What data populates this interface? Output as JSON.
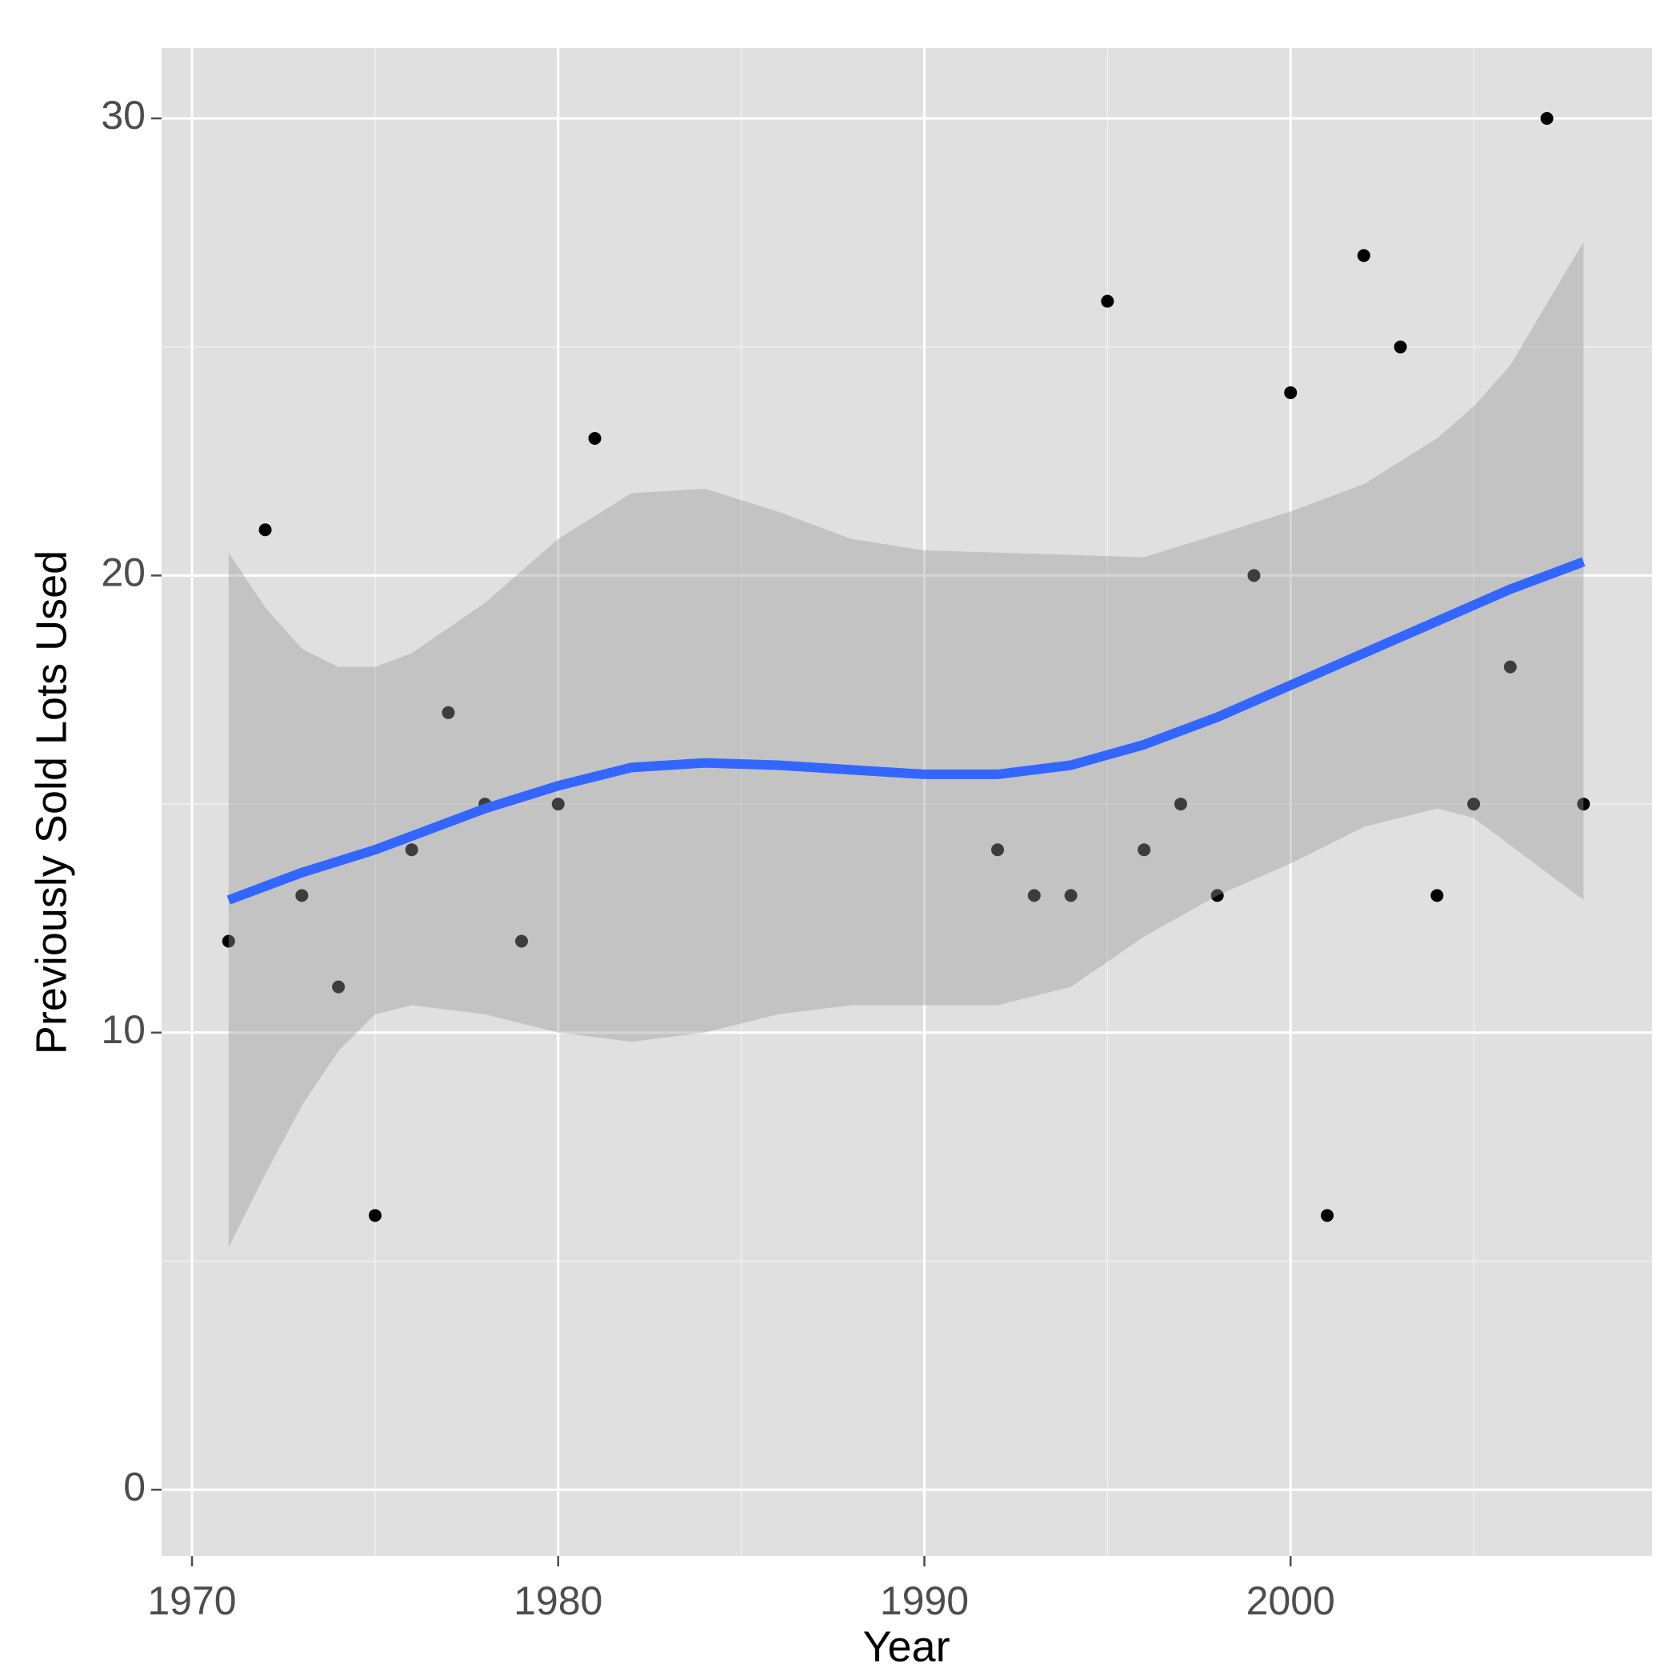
{
  "chart_data": {
    "type": "scatter",
    "x_label": "Year",
    "y_label": "Previously Sold Lots Used",
    "x": [
      1971,
      1972,
      1973,
      1974,
      1975,
      1976,
      1977,
      1978,
      1979,
      1980,
      1981,
      1992,
      1993,
      1994,
      1995,
      1996,
      1997,
      1998,
      1999,
      2000,
      2001,
      2002,
      2003,
      2004,
      2005,
      2006,
      2007,
      2008
    ],
    "values": [
      12,
      21,
      13,
      11,
      6,
      14,
      17,
      15,
      12,
      15,
      23,
      14,
      13,
      13,
      26,
      14,
      15,
      13,
      20,
      24,
      6,
      27,
      25,
      13,
      15,
      18,
      30,
      15
    ],
    "color": "#000000",
    "smooth": {
      "color": "#3366ff",
      "band_color": "#999999",
      "x": [
        1971,
        1972,
        1973,
        1974,
        1975,
        1976,
        1978,
        1980,
        1982,
        1984,
        1986,
        1988,
        1990,
        1992,
        1994,
        1996,
        1998,
        2000,
        2002,
        2004,
        2005,
        2006,
        2008
      ],
      "values": [
        12.9,
        13.2,
        13.5,
        13.75,
        14.0,
        14.3,
        14.9,
        15.4,
        15.8,
        15.9,
        15.85,
        15.75,
        15.65,
        15.65,
        15.85,
        16.3,
        16.9,
        17.6,
        18.3,
        19.0,
        19.35,
        19.7,
        20.3
      ],
      "upper": [
        20.5,
        19.3,
        18.4,
        18.0,
        18.0,
        18.3,
        19.4,
        20.8,
        21.8,
        21.9,
        21.4,
        20.8,
        20.55,
        20.5,
        20.45,
        20.4,
        20.9,
        21.4,
        22.0,
        23.0,
        23.7,
        24.6,
        27.3
      ],
      "lower": [
        5.3,
        6.9,
        8.4,
        9.6,
        10.4,
        10.6,
        10.4,
        10.0,
        9.8,
        10.0,
        10.4,
        10.6,
        10.6,
        10.6,
        11.0,
        12.1,
        13.0,
        13.7,
        14.5,
        14.9,
        14.7,
        14.1,
        12.9
      ]
    },
    "xlim": [
      1969.17,
      2009.87
    ],
    "ylim": [
      -1.45,
      31.54
    ],
    "xticks": [
      1970,
      1980,
      1990,
      2000
    ],
    "yticks": [
      0,
      10,
      20,
      30
    ],
    "xminor": [
      1975,
      1985,
      1995,
      2005
    ],
    "yminor": [
      5,
      15,
      25
    ],
    "grid": true
  }
}
